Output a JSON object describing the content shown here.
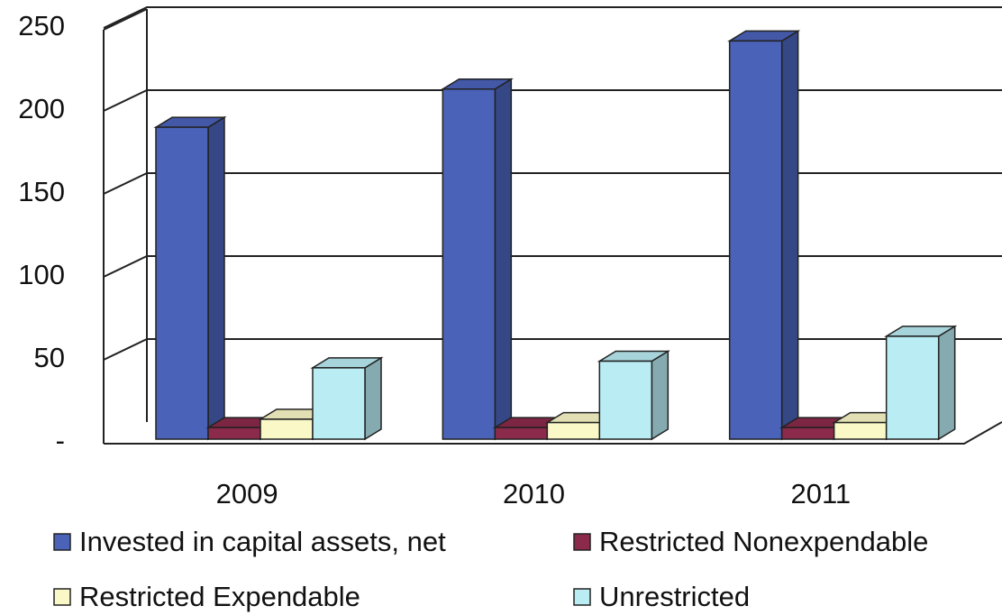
{
  "chart_data": {
    "type": "bar3d",
    "categories": [
      "2009",
      "2010",
      "2011"
    ],
    "series": [
      {
        "name": "Invested in capital assets, net",
        "color": "#4a62b8",
        "values": [
          188,
          211,
          240
        ]
      },
      {
        "name": "Restricted Nonexpendable",
        "color": "#8b2a4a",
        "values": [
          7,
          7,
          7
        ]
      },
      {
        "name": "Restricted Expendable",
        "color": "#fbf8c8",
        "values": [
          12,
          10,
          10
        ]
      },
      {
        "name": "Unrestricted",
        "color": "#b9ecf3",
        "values": [
          43,
          47,
          62
        ]
      }
    ],
    "ylim": [
      0,
      250
    ],
    "yticks": [
      {
        "value": 0,
        "label": "-"
      },
      50,
      100,
      150,
      200,
      250
    ],
    "grid": true,
    "legend": "bottom"
  }
}
